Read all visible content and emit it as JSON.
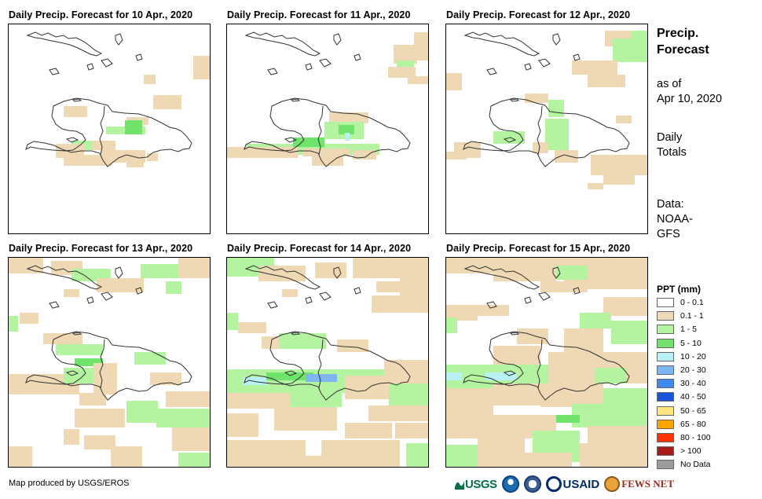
{
  "panels": [
    {
      "title": "Daily Precip. Forecast for 10 Apr., 2020"
    },
    {
      "title": "Daily Precip. Forecast for 11 Apr., 2020"
    },
    {
      "title": "Daily Precip. Forecast for 12 Apr., 2020"
    },
    {
      "title": "Daily Precip. Forecast for 13 Apr., 2020"
    },
    {
      "title": "Daily Precip. Forecast for 14 Apr., 2020"
    },
    {
      "title": "Daily Precip. Forecast for 15 Apr., 2020"
    }
  ],
  "side": {
    "title_line1": "Precip.",
    "title_line2": "Forecast",
    "asof_line1": "as of",
    "asof_line2": "Apr 10, 2020",
    "totals_line1": "Daily",
    "totals_line2": "Totals",
    "data_line1": "Data:",
    "data_line2": "NOAA-",
    "data_line3": "GFS"
  },
  "legend": {
    "title": "PPT (mm)",
    "items": [
      {
        "label": "0 - 0.1",
        "color": "#ffffff"
      },
      {
        "label": "0.1 - 1",
        "color": "#efd9b4"
      },
      {
        "label": "1 - 5",
        "color": "#b4f4a0"
      },
      {
        "label": "5 - 10",
        "color": "#6fe36a"
      },
      {
        "label": "10 - 20",
        "color": "#b8f1f4"
      },
      {
        "label": "20 - 30",
        "color": "#7eb6f4"
      },
      {
        "label": "30 - 40",
        "color": "#3f86f0"
      },
      {
        "label": "40 - 50",
        "color": "#1a55d9"
      },
      {
        "label": "50 - 65",
        "color": "#ffe680"
      },
      {
        "label": "65 - 80",
        "color": "#ffa500"
      },
      {
        "label": "80 - 100",
        "color": "#ff3300"
      },
      {
        "label": "> 100",
        "color": "#a51a1a"
      },
      {
        "label": "No Data",
        "color": "#9c9c9c"
      }
    ]
  },
  "credit": "Map produced by USGS/EROS",
  "logos": {
    "usgs": "USGS",
    "usaid": "USAID",
    "fewsnet": "FEWS NET",
    "usgs_icon": "usgs-logo-icon",
    "noaa_icon": "noaa-logo-icon",
    "dos_icon": "state-dept-seal-icon",
    "fews_icon": "fews-net-logo-icon"
  }
}
